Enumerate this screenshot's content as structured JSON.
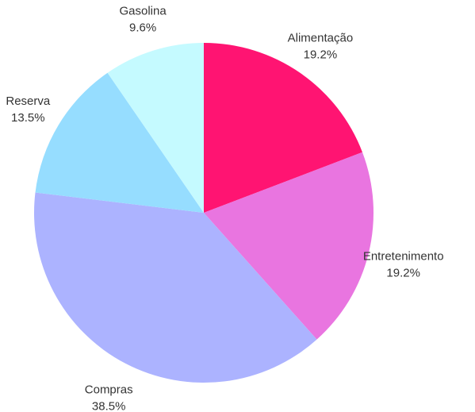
{
  "chart_data": {
    "type": "pie",
    "title": "",
    "start": "top",
    "direction": "clockwise",
    "slices": [
      {
        "label": "Alimentação",
        "value": 19.2,
        "value_text": "19.2%",
        "color": "#FF1472"
      },
      {
        "label": "Entretenimento",
        "value": 19.2,
        "value_text": "19.2%",
        "color": "#E975E0"
      },
      {
        "label": "Compras",
        "value": 38.5,
        "value_text": "38.5%",
        "color": "#ACB3FF"
      },
      {
        "label": "Reserva",
        "value": 13.5,
        "value_text": "13.5%",
        "color": "#96DDFF"
      },
      {
        "label": "Gasolina",
        "value": 9.6,
        "value_text": "9.6%",
        "color": "#C5FAFF"
      }
    ]
  }
}
